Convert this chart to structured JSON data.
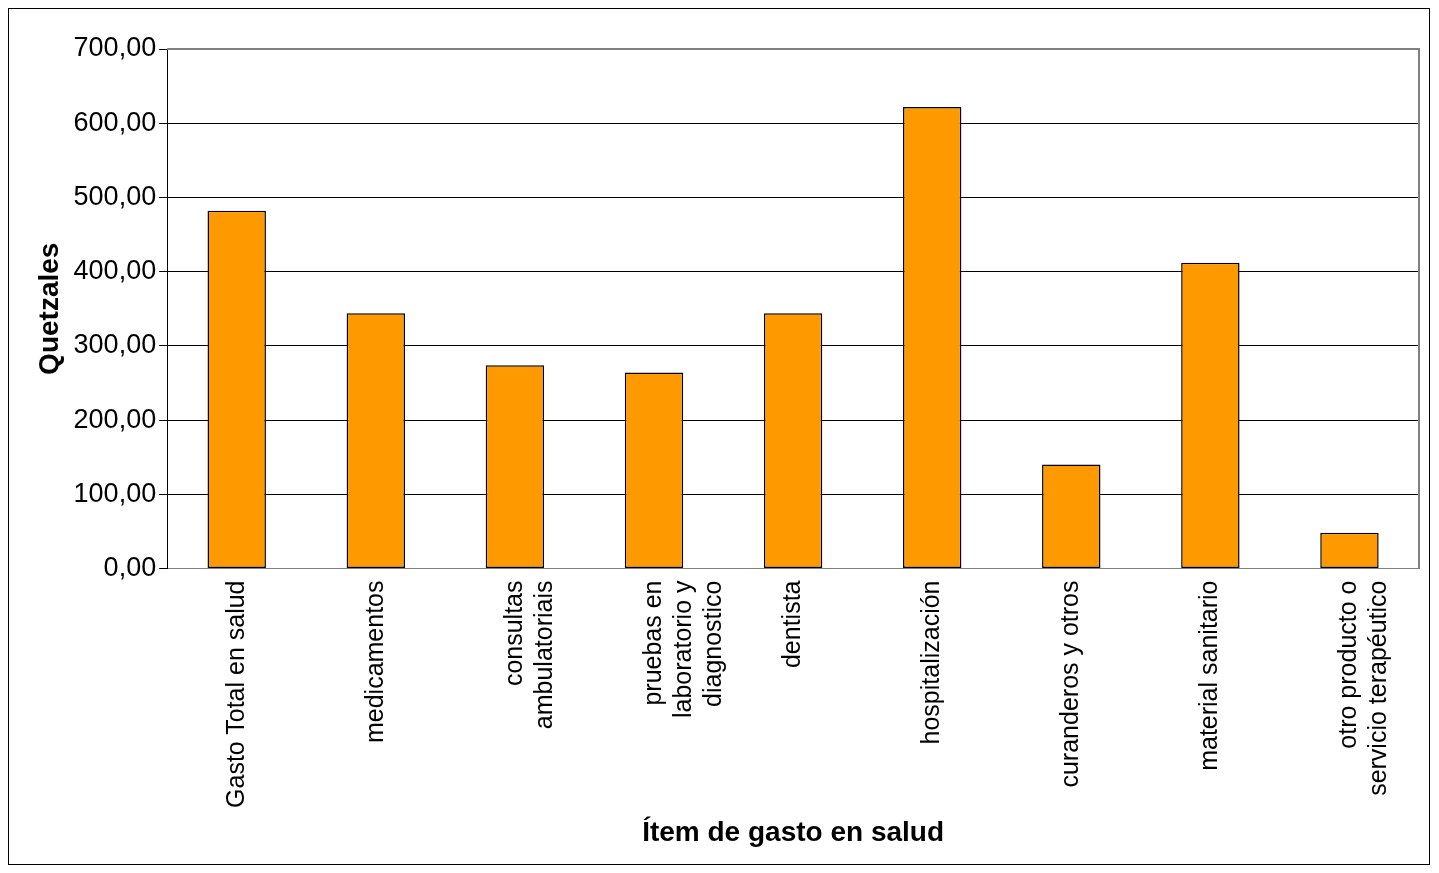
{
  "chart_data": {
    "type": "bar",
    "xlabel": "Ítem de gasto en salud",
    "ylabel": "Quetzales",
    "categories": [
      "Gasto Total en salud",
      "medicamentos",
      "consultas ambulatoriais",
      "pruebas en laboratorio y diagnostico",
      "dentista",
      "hospitalización",
      "curanderos y otros",
      "material sanitario",
      "otro producto o servicio terapéutico"
    ],
    "values": [
      482,
      344,
      274,
      264,
      344,
      622,
      140,
      412,
      48
    ],
    "color": "#ff9900",
    "ylim": [
      0,
      700
    ],
    "yticks": [
      {
        "value": 0,
        "label": "0,00"
      },
      {
        "value": 100,
        "label": "100,00"
      },
      {
        "value": 200,
        "label": "200,00"
      },
      {
        "value": 300,
        "label": "300,00"
      },
      {
        "value": 400,
        "label": "400,00"
      },
      {
        "value": 500,
        "label": "500,00"
      },
      {
        "value": 600,
        "label": "600,00"
      },
      {
        "value": 700,
        "label": "700,00"
      }
    ],
    "grid": "y",
    "legend": false
  }
}
